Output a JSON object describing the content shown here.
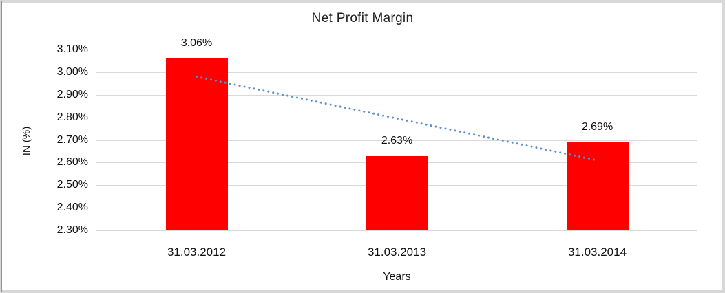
{
  "page": {
    "background": "#ffffff",
    "frame_color": "#d8d8d8"
  },
  "chart_data": {
    "type": "bar",
    "title": "Net Profit Margin",
    "xlabel": "Years",
    "ylabel": "IN (%)",
    "categories": [
      "31.03.2012",
      "31.03.2013",
      "31.03.2014"
    ],
    "values": [
      3.06,
      2.63,
      2.69
    ],
    "value_labels": [
      "3.06%",
      "2.63%",
      "2.69%"
    ],
    "bar_color": "#ff0000",
    "ylim": [
      2.3,
      3.1
    ],
    "ytick_step": 0.1,
    "yticks": [
      {
        "value": 3.1,
        "label": "3.10%"
      },
      {
        "value": 3.0,
        "label": "3.00%"
      },
      {
        "value": 2.9,
        "label": "2.90%"
      },
      {
        "value": 2.8,
        "label": "2.80%"
      },
      {
        "value": 2.7,
        "label": "2.70%"
      },
      {
        "value": 2.6,
        "label": "2.60%"
      },
      {
        "value": 2.5,
        "label": "2.50%"
      },
      {
        "value": 2.4,
        "label": "2.40%"
      },
      {
        "value": 2.3,
        "label": "2.30%"
      }
    ],
    "grid": true,
    "gridline_color": "#d9d9d9",
    "legend": "none",
    "trendline": {
      "type": "linear",
      "style": "dotted",
      "color": "#5b8fc9",
      "start_value": 2.98,
      "end_value": 2.61
    }
  }
}
